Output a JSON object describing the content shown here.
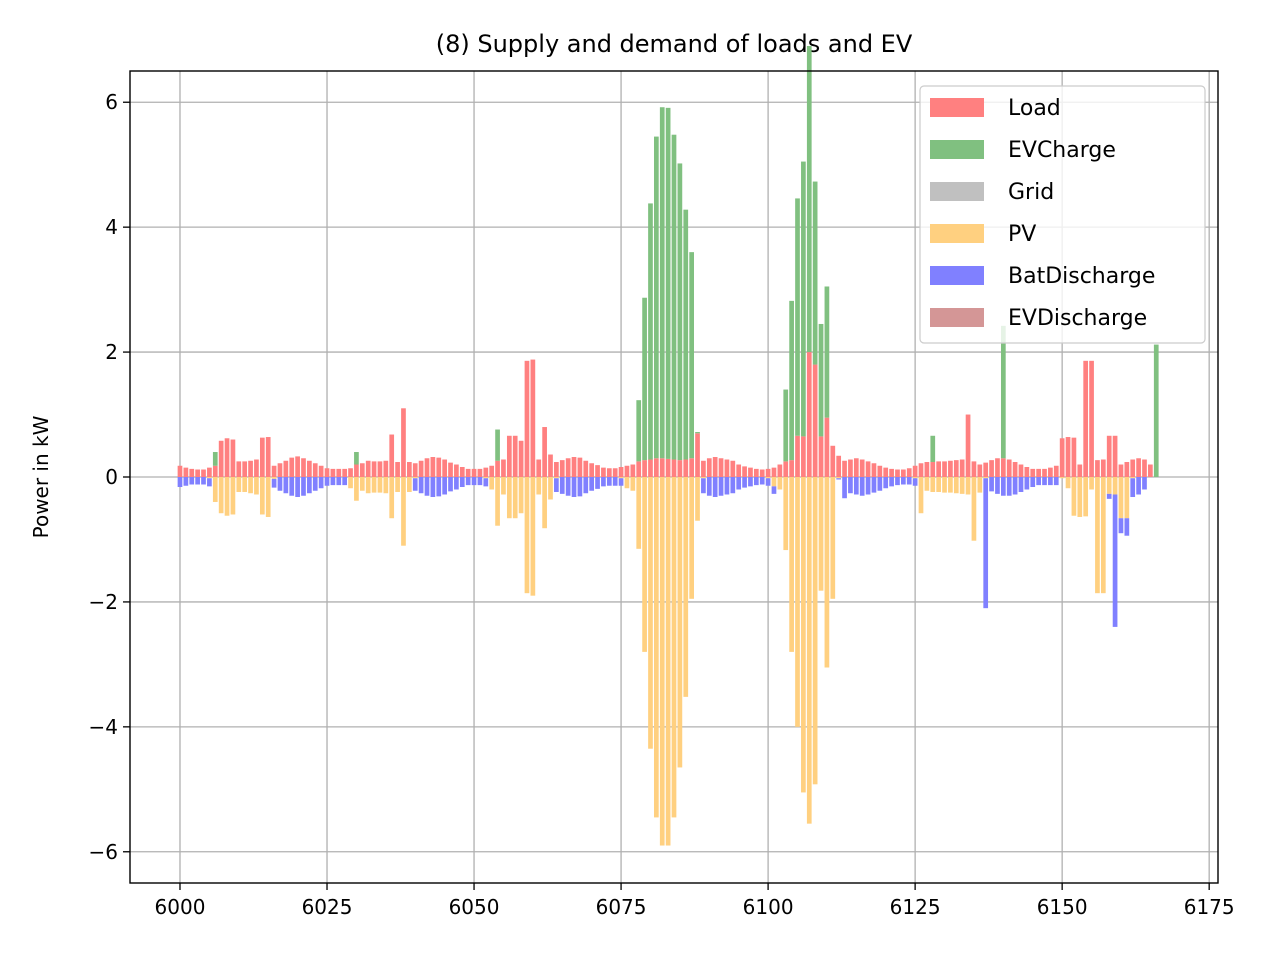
{
  "chart_data": {
    "type": "bar",
    "title": "(8) Supply and demand of loads and EV",
    "xlabel": "",
    "ylabel": "Power in kW",
    "xlim": [
      5991.5,
      6176.5
    ],
    "ylim": [
      -6.5,
      6.5
    ],
    "xticks": [
      6000,
      6025,
      6050,
      6075,
      6100,
      6125,
      6150,
      6175
    ],
    "xtick_labels": [
      "6000",
      "6025",
      "6050",
      "6075",
      "6100",
      "6125",
      "6150",
      "6175"
    ],
    "yticks": [
      -6,
      -4,
      -2,
      0,
      2,
      4,
      6
    ],
    "ytick_labels": [
      "−6",
      "−4",
      "−2",
      "0",
      "2",
      "4",
      "6"
    ],
    "grid": true,
    "legend_position": "top-right",
    "bar_width": 0.8,
    "x_start": 6000,
    "colors": {
      "Load": "#ff8080",
      "EVCharge": "#80c080",
      "Grid": "#c0c0c0",
      "PV": "#ffd080",
      "BatDischarge": "#8080ff",
      "EVDischarge": "#d49696"
    },
    "series": [
      {
        "name": "Load",
        "values": [
          0.18,
          0.15,
          0.13,
          0.12,
          0.12,
          0.15,
          0.18,
          0.58,
          0.62,
          0.6,
          0.25,
          0.25,
          0.26,
          0.28,
          0.63,
          0.64,
          0.18,
          0.22,
          0.26,
          0.31,
          0.33,
          0.3,
          0.26,
          0.22,
          0.18,
          0.14,
          0.13,
          0.13,
          0.13,
          0.14,
          0.2,
          0.22,
          0.26,
          0.25,
          0.25,
          0.26,
          0.68,
          0.24,
          1.1,
          0.24,
          0.22,
          0.26,
          0.3,
          0.32,
          0.31,
          0.28,
          0.23,
          0.2,
          0.16,
          0.13,
          0.13,
          0.13,
          0.15,
          0.18,
          0.26,
          0.28,
          0.66,
          0.66,
          0.58,
          1.86,
          1.88,
          0.28,
          0.8,
          0.36,
          0.24,
          0.27,
          0.3,
          0.32,
          0.31,
          0.26,
          0.22,
          0.19,
          0.15,
          0.14,
          0.14,
          0.16,
          0.18,
          0.2,
          0.25,
          0.27,
          0.28,
          0.3,
          0.3,
          0.29,
          0.28,
          0.27,
          0.28,
          0.3,
          0.7,
          0.26,
          0.3,
          0.32,
          0.3,
          0.28,
          0.26,
          0.2,
          0.17,
          0.15,
          0.13,
          0.12,
          0.13,
          0.15,
          0.2,
          0.25,
          0.27,
          0.66,
          0.65,
          2.0,
          1.8,
          0.65,
          0.95,
          0.5,
          0.34,
          0.26,
          0.28,
          0.3,
          0.28,
          0.25,
          0.22,
          0.18,
          0.15,
          0.13,
          0.12,
          0.12,
          0.14,
          0.18,
          0.22,
          0.24,
          0.24,
          0.25,
          0.25,
          0.26,
          0.27,
          0.28,
          1.0,
          0.25,
          0.2,
          0.23,
          0.27,
          0.3,
          0.3,
          0.28,
          0.24,
          0.2,
          0.16,
          0.13,
          0.13,
          0.13,
          0.15,
          0.18,
          0.62,
          0.64,
          0.63,
          0.2,
          1.86,
          1.86,
          0.27,
          0.28,
          0.66,
          0.66,
          0.2,
          0.24,
          0.28,
          0.3,
          0.28,
          0.2
        ],
        "pos_base": 0
      },
      {
        "name": "EVCharge",
        "values": [
          0,
          0,
          0,
          0,
          0,
          0,
          0.22,
          0,
          0,
          0,
          0,
          0,
          0,
          0,
          0,
          0,
          0,
          0,
          0,
          0,
          0,
          0,
          0,
          0,
          0,
          0,
          0,
          0,
          0,
          0,
          0.2,
          0,
          0,
          0,
          0,
          0,
          0,
          0,
          0,
          0,
          0,
          0,
          0,
          0,
          0,
          0,
          0,
          0,
          0,
          0,
          0,
          0,
          0,
          0,
          0.5,
          0,
          0,
          0,
          0,
          0,
          0,
          0,
          0,
          0,
          0,
          0,
          0,
          0,
          0,
          0,
          0,
          0,
          0,
          0,
          0,
          0,
          0,
          0,
          0.98,
          2.6,
          4.1,
          5.15,
          5.62,
          5.62,
          5.2,
          4.75,
          4.0,
          3.3,
          0.02,
          0,
          0,
          0,
          0,
          0,
          0,
          0,
          0,
          0,
          0,
          0,
          0,
          0,
          0,
          1.15,
          2.55,
          3.8,
          4.4,
          4.9,
          2.93,
          1.8,
          2.1,
          0,
          0,
          0,
          0,
          0,
          0,
          0,
          0,
          0,
          0,
          0,
          0,
          0,
          0,
          0,
          0,
          0,
          0.42,
          0,
          0,
          0,
          0,
          0,
          0,
          0,
          0,
          0,
          0,
          0,
          2.12,
          0,
          0,
          0,
          0,
          0,
          0,
          0,
          0,
          0,
          0,
          0,
          0,
          0,
          0,
          0,
          0,
          0,
          0,
          0,
          0,
          0,
          0,
          0,
          0,
          0,
          2.12,
          0,
          0,
          0,
          0,
          0,
          0
        ],
        "pos_base_series": "Load"
      },
      {
        "name": "Grid",
        "values": []
      },
      {
        "name": "PV",
        "values": [
          0,
          0,
          0,
          0,
          0,
          -0.02,
          -0.4,
          -0.58,
          -0.62,
          -0.6,
          -0.24,
          -0.24,
          -0.26,
          -0.28,
          -0.6,
          -0.64,
          -0.03,
          0,
          0,
          0,
          0,
          0,
          0,
          0,
          0,
          0,
          0,
          0,
          0,
          -0.18,
          -0.38,
          -0.22,
          -0.26,
          -0.25,
          -0.25,
          -0.26,
          -0.66,
          -0.24,
          -1.1,
          -0.24,
          -0.02,
          0,
          0,
          0,
          0,
          0,
          0,
          0,
          0,
          0,
          0,
          0,
          -0.02,
          -0.2,
          -0.78,
          -0.28,
          -0.66,
          -0.66,
          -0.58,
          -1.86,
          -1.9,
          -0.28,
          -0.82,
          -0.36,
          -0.02,
          0,
          0,
          0,
          0,
          0,
          0,
          0,
          0,
          0,
          0,
          -0.02,
          -0.18,
          -0.22,
          -1.15,
          -2.8,
          -4.35,
          -5.45,
          -5.9,
          -5.9,
          -5.45,
          -4.65,
          -3.52,
          -1.95,
          -0.7,
          -0.02,
          0,
          0,
          0,
          0,
          0,
          0,
          0,
          0,
          0,
          0,
          -0.02,
          -0.15,
          -0.2,
          -1.17,
          -2.8,
          -4.0,
          -5.05,
          -5.55,
          -4.92,
          -1.82,
          -3.05,
          -1.95,
          -0.02,
          0,
          0,
          0,
          0,
          0,
          0,
          0,
          0,
          0,
          0,
          0,
          0,
          -0.02,
          -0.58,
          -0.22,
          -0.24,
          -0.24,
          -0.25,
          -0.25,
          -0.26,
          -0.27,
          -0.28,
          -1.02,
          -0.25,
          -0.02,
          0,
          0,
          0,
          0,
          0,
          0,
          0,
          0,
          0,
          0,
          0,
          0,
          -0.02,
          -0.18,
          -0.62,
          -0.64,
          -0.63,
          -0.2,
          -1.86,
          -1.86,
          -0.27,
          -0.28,
          -0.66,
          -0.66,
          -0.02,
          0,
          0,
          0,
          0,
          0
        ],
        "neg_base": 0
      },
      {
        "name": "BatDischarge",
        "values": [
          -0.16,
          -0.14,
          -0.12,
          -0.12,
          -0.12,
          -0.13,
          0,
          0,
          0,
          0,
          0,
          0,
          0,
          0,
          0,
          0,
          -0.14,
          -0.22,
          -0.26,
          -0.3,
          -0.32,
          -0.3,
          -0.26,
          -0.22,
          -0.18,
          -0.14,
          -0.13,
          -0.13,
          -0.13,
          0,
          0,
          0,
          0,
          0,
          0,
          0,
          0,
          0,
          0,
          0,
          -0.2,
          -0.26,
          -0.3,
          -0.32,
          -0.31,
          -0.28,
          -0.23,
          -0.2,
          -0.16,
          -0.13,
          -0.13,
          -0.13,
          -0.13,
          0,
          0,
          0,
          0,
          0,
          0,
          0,
          0,
          0,
          0,
          0,
          -0.22,
          -0.27,
          -0.3,
          -0.32,
          -0.31,
          -0.26,
          -0.22,
          -0.19,
          -0.15,
          -0.14,
          -0.14,
          -0.12,
          0,
          0,
          0,
          0,
          0,
          0,
          0,
          0,
          0,
          0,
          0,
          0,
          0,
          -0.24,
          -0.3,
          -0.32,
          -0.3,
          -0.28,
          -0.26,
          -0.2,
          -0.17,
          -0.15,
          -0.13,
          -0.12,
          -0.12,
          -0.12,
          0,
          0,
          0,
          0,
          0,
          0,
          0,
          0,
          0,
          0,
          -0.02,
          -0.34,
          -0.26,
          -0.28,
          -0.3,
          -0.28,
          -0.25,
          -0.22,
          -0.18,
          -0.15,
          -0.13,
          -0.12,
          -0.12,
          -0.12,
          0,
          0,
          0,
          0,
          0,
          0,
          0,
          0,
          0,
          0,
          0,
          -2.08,
          -0.23,
          -0.27,
          -0.3,
          -0.3,
          -0.28,
          -0.24,
          -0.2,
          -0.16,
          -0.13,
          -0.13,
          -0.13,
          -0.13,
          0,
          0,
          0,
          0,
          0,
          0,
          0,
          0,
          -0.08,
          -2.12,
          -0.24,
          -0.28,
          -0.3,
          -0.28,
          -0.2
        ],
        "neg_base_series": "PV"
      },
      {
        "name": "EVDischarge",
        "values": []
      }
    ]
  }
}
